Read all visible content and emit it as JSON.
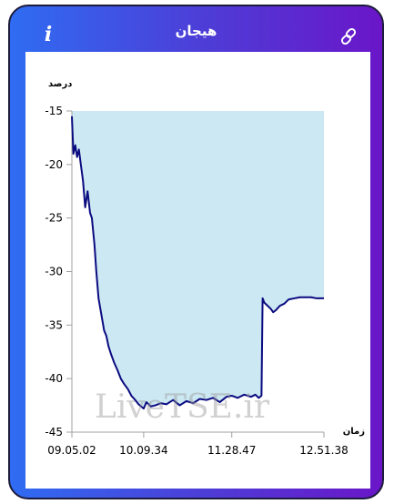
{
  "header": {
    "title": "هیجان",
    "info_label": "i",
    "info_icon": "info-icon",
    "link_icon": "link-icon"
  },
  "colors": {
    "gradient_start": "#2f6cf2",
    "gradient_end": "#6a16c8",
    "line": "#0b0b80",
    "area": "#cce8f2"
  },
  "chart_data": {
    "type": "area",
    "ylabel": "درصد",
    "xlabel": "زمان",
    "ylim": [
      -45,
      -15
    ],
    "yticks": [
      -15,
      -20,
      -25,
      -30,
      -35,
      -40,
      -45
    ],
    "ytick_labels": [
      "-15",
      "-20",
      "-25",
      "-30",
      "-35",
      "-40",
      "-45"
    ],
    "xlim": [
      "09.05.02",
      "12.51.38"
    ],
    "xtick_labels": [
      "09.05.02",
      "10.09.34",
      "11.28.47",
      "12.51.38"
    ],
    "xtick_positions": [
      "09.05.02",
      "10.09.34",
      "11.28.47",
      "12.51.38"
    ],
    "fill_to": -15,
    "watermark": "LiveTSE.ir",
    "series": [
      {
        "x": [
          "09.05.02",
          "09.06.25",
          "09.08.05",
          "09.09.40",
          "09.11.20",
          "09.13.05",
          "09.15.00",
          "09.17.00",
          "09.19.10",
          "09.21.20",
          "09.23.00",
          "09.25.20",
          "09.27.00",
          "09.29.00",
          "09.31.30",
          "09.34.00",
          "09.36.00",
          "09.38.00",
          "09.40.30",
          "09.43.00",
          "09.46.00",
          "09.49.00",
          "09.52.00",
          "09.55.30",
          "09.58.30",
          "10.02.00",
          "10.05.00",
          "10.09.34",
          "10.12.00",
          "10.16.00",
          "10.20.00",
          "10.25.00",
          "10.30.00",
          "10.36.00",
          "10.42.00",
          "10.48.00",
          "10.54.00",
          "11.00.00",
          "11.06.00",
          "11.12.00",
          "11.18.00",
          "11.24.00",
          "11.28.47",
          "11.34.00",
          "11.40.00",
          "11.46.00",
          "11.50.00",
          "11.53.00",
          "11.55.30",
          "11.56.30",
          "11.58.00",
          "12.01.00",
          "12.04.00",
          "12.06.00",
          "12.08.30",
          "12.12.00",
          "12.16.00",
          "12.20.00",
          "12.25.00",
          "12.30.00",
          "12.35.00",
          "12.40.00",
          "12.45.00",
          "12.51.38"
        ],
        "values": [
          -15.5,
          -19.0,
          -18.2,
          -19.3,
          -18.6,
          -20.0,
          -21.5,
          -24.0,
          -22.5,
          -24.5,
          -25.0,
          -27.5,
          -30.0,
          -32.5,
          -34.0,
          -35.5,
          -36.0,
          -37.0,
          -37.8,
          -38.5,
          -39.2,
          -40.0,
          -40.5,
          -41.0,
          -41.6,
          -42.0,
          -42.4,
          -42.8,
          -42.2,
          -42.6,
          -42.5,
          -42.3,
          -42.4,
          -42.0,
          -42.5,
          -42.1,
          -42.3,
          -41.9,
          -42.0,
          -41.8,
          -42.2,
          -41.7,
          -41.6,
          -41.8,
          -41.5,
          -41.7,
          -41.5,
          -41.8,
          -41.6,
          -32.5,
          -32.9,
          -33.2,
          -33.5,
          -33.8,
          -33.6,
          -33.2,
          -33.0,
          -32.6,
          -32.5,
          -32.4,
          -32.4,
          -32.4,
          -32.5,
          -32.5
        ]
      }
    ]
  }
}
